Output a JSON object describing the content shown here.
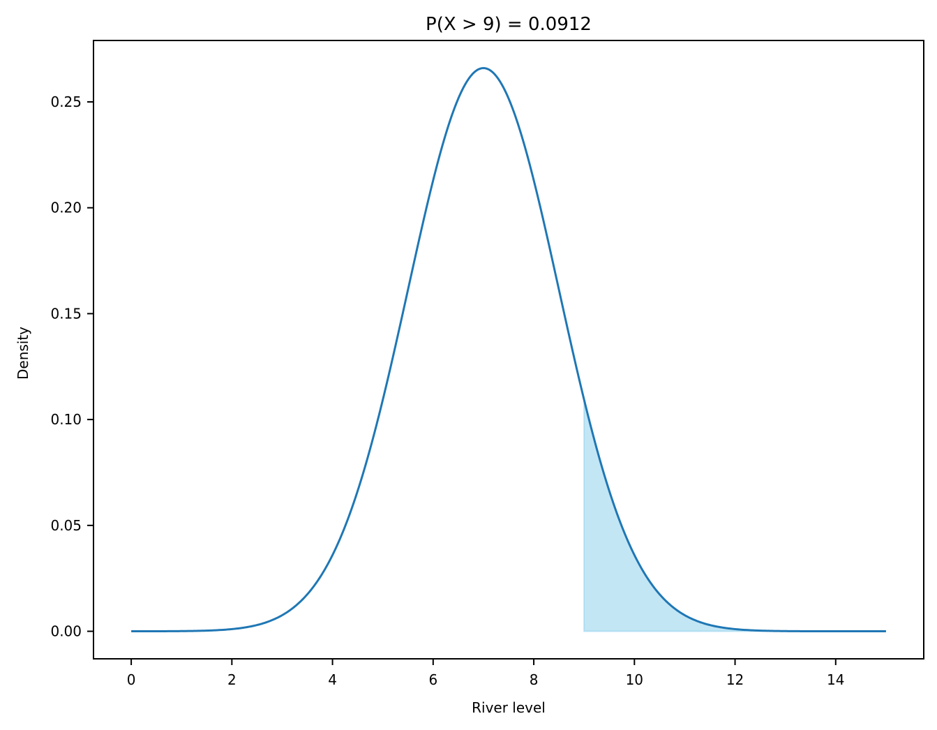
{
  "chart_data": {
    "type": "area",
    "title": "P(X > 9) = 0.0912",
    "xlabel": "River level",
    "ylabel": "Density",
    "xlim": [
      -0.75,
      15.75
    ],
    "ylim": [
      -0.013,
      0.279
    ],
    "x_ticks": [
      0,
      2,
      4,
      6,
      8,
      10,
      12,
      14
    ],
    "x_tick_labels": [
      "0",
      "2",
      "4",
      "6",
      "8",
      "10",
      "12",
      "14"
    ],
    "y_ticks": [
      0.0,
      0.05,
      0.1,
      0.15,
      0.2,
      0.25
    ],
    "y_tick_labels": [
      "0.00",
      "0.05",
      "0.10",
      "0.15",
      "0.20",
      "0.25"
    ],
    "grid": false,
    "legend": null,
    "distribution": {
      "name": "normal",
      "mean": 7,
      "std": 1.5
    },
    "x_range": [
      0,
      15
    ],
    "shaded_region": {
      "from": 9,
      "to": 15,
      "probability": 0.0912
    },
    "series": [
      {
        "name": "Density",
        "color": "#1f77b4",
        "x": [
          0,
          1,
          2,
          3,
          4,
          5,
          6,
          7,
          8,
          9,
          10,
          11,
          12,
          13,
          14,
          15
        ],
        "values": [
          0.0,
          0.0,
          0.001,
          0.0076,
          0.036,
          0.1093,
          0.213,
          0.266,
          0.213,
          0.1093,
          0.036,
          0.0076,
          0.001,
          0.0001,
          0.0,
          0.0
        ]
      }
    ],
    "colors": {
      "line": "#1f77b4",
      "fill": "#87ceeb",
      "fill_alpha": 0.5
    }
  }
}
